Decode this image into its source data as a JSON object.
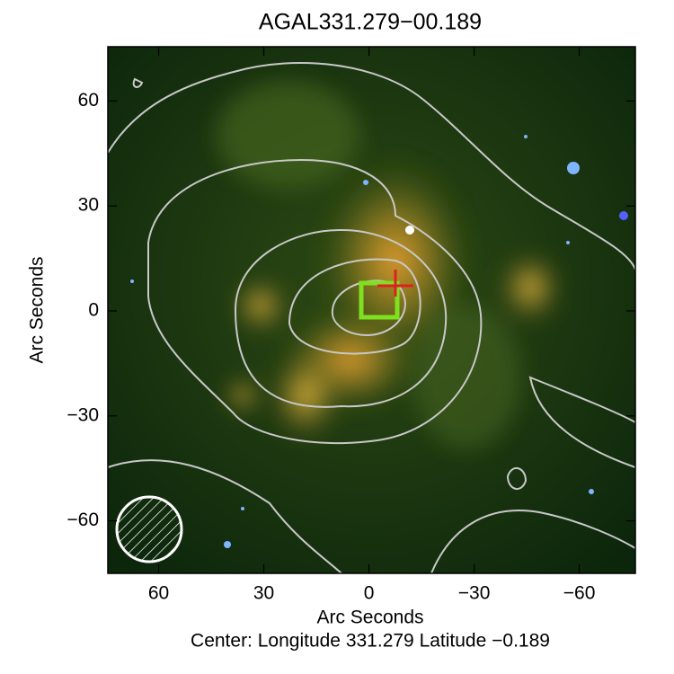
{
  "chart_data": {
    "type": "image",
    "title": "AGAL331.279−00.189",
    "xlabel": "Arc Seconds",
    "ylabel": "Arc Seconds",
    "footer": "Center:  Longitude 331.279 Latitude −0.189",
    "xlim": [
      74.5,
      -76
    ],
    "ylim": [
      -75,
      75.5
    ],
    "xticks": [
      60,
      30,
      0,
      {
        "value": -30,
        "label": "−30"
      },
      {
        "value": -60,
        "label": "−60"
      }
    ],
    "yticks": [
      {
        "value": -60,
        "label": "−60"
      },
      {
        "value": -30,
        "label": "−30"
      },
      0,
      30,
      60
    ]
  }
}
